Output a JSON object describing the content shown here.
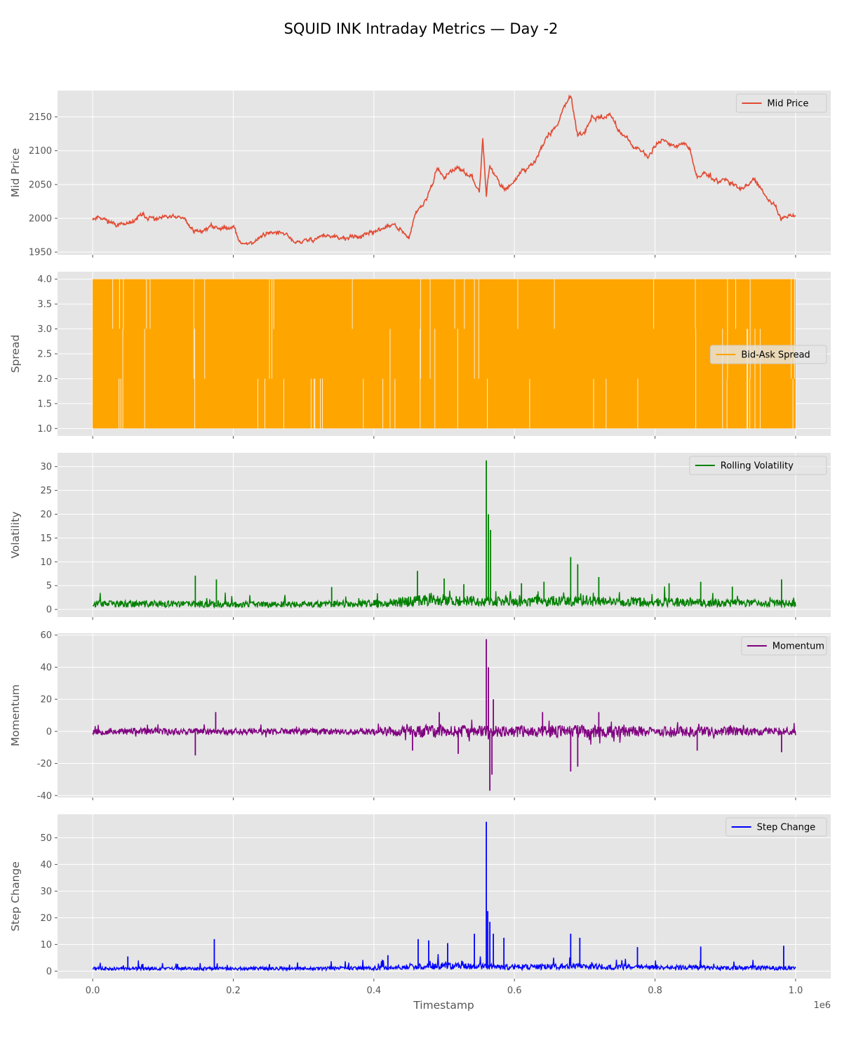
{
  "chart_data": {
    "type": "line",
    "title": "SQUID INK Intraday Metrics — Day -2",
    "xlabel": "Timestamp",
    "x_offset_text": "1e6",
    "xlim": [
      -0.05,
      1.05
    ],
    "xticks": [
      "0.0",
      "0.2",
      "0.4",
      "0.6",
      "0.8",
      "1.0"
    ],
    "xtick_values": [
      0.0,
      0.2,
      0.4,
      0.6,
      0.8,
      1.0
    ],
    "grid": true,
    "style": "ggplot",
    "panels": [
      {
        "id": "mid",
        "ylabel": "Mid Price",
        "ylim": [
          1946,
          2189
        ],
        "yticks": [
          1950,
          2000,
          2050,
          2100,
          2150
        ],
        "legend": "top-right",
        "series": [
          {
            "name": "Mid Price",
            "color": "#e24a33",
            "render": "line",
            "x": [
              0,
              0.01,
              0.02,
              0.03,
              0.05,
              0.07,
              0.09,
              0.11,
              0.13,
              0.14,
              0.15,
              0.17,
              0.19,
              0.2,
              0.21,
              0.23,
              0.25,
              0.27,
              0.29,
              0.31,
              0.33,
              0.35,
              0.37,
              0.39,
              0.41,
              0.43,
              0.44,
              0.45,
              0.46,
              0.47,
              0.48,
              0.49,
              0.5,
              0.51,
              0.52,
              0.53,
              0.54,
              0.55,
              0.555,
              0.56,
              0.565,
              0.57,
              0.575,
              0.58,
              0.59,
              0.6,
              0.61,
              0.62,
              0.63,
              0.64,
              0.65,
              0.66,
              0.67,
              0.68,
              0.69,
              0.7,
              0.71,
              0.72,
              0.73,
              0.74,
              0.75,
              0.76,
              0.77,
              0.78,
              0.79,
              0.8,
              0.81,
              0.82,
              0.83,
              0.84,
              0.85,
              0.86,
              0.87,
              0.88,
              0.89,
              0.9,
              0.91,
              0.92,
              0.93,
              0.94,
              0.95,
              0.96,
              0.97,
              0.98,
              0.99,
              1.0
            ],
            "y": [
              2000,
              2003,
              1997,
              1992,
              1990,
              2005,
              1998,
              2002,
              2000,
              1985,
              1980,
              1988,
              1985,
              1990,
              1962,
              1965,
              1980,
              1978,
              1964,
              1968,
              1975,
              1970,
              1972,
              1975,
              1985,
              1990,
              1980,
              1970,
              2010,
              2020,
              2040,
              2075,
              2060,
              2070,
              2075,
              2065,
              2060,
              2040,
              2120,
              2035,
              2080,
              2065,
              2060,
              2048,
              2045,
              2055,
              2070,
              2075,
              2085,
              2110,
              2125,
              2135,
              2165,
              2183,
              2120,
              2125,
              2150,
              2148,
              2152,
              2150,
              2128,
              2118,
              2108,
              2098,
              2090,
              2108,
              2118,
              2110,
              2105,
              2112,
              2100,
              2060,
              2068,
              2062,
              2055,
              2058,
              2052,
              2045,
              2048,
              2055,
              2045,
              2030,
              2015,
              2000,
              2005,
              2002
            ],
            "noise": 3.5,
            "seed": 11
          }
        ]
      },
      {
        "id": "spread",
        "ylabel": "Spread",
        "ylim": [
          0.85,
          4.15
        ],
        "yticks": [
          1.0,
          1.5,
          2.0,
          2.5,
          3.0,
          3.5,
          4.0
        ],
        "legend": "center-right",
        "series": [
          {
            "name": "Bid-Ask Spread",
            "color": "#ffa500",
            "render": "band",
            "x": [
              0,
              1.0
            ],
            "y_min": [
              1.0,
              1.0
            ],
            "y_max": [
              4.0,
              4.0
            ],
            "seed": 23
          }
        ]
      },
      {
        "id": "vol",
        "ylabel": "Volatility",
        "ylim": [
          -1.6,
          32.9
        ],
        "yticks": [
          0,
          5,
          10,
          15,
          20,
          25,
          30
        ],
        "legend": "top-right",
        "series": [
          {
            "name": "Rolling Volatility",
            "color": "#008000",
            "render": "spiky",
            "x": [
              0,
              0.1,
              0.2,
              0.3,
              0.4,
              0.45,
              0.5,
              0.55,
              0.6,
              0.65,
              0.7,
              0.75,
              0.8,
              0.85,
              0.9,
              0.95,
              1.0
            ],
            "y": [
              1.2,
              1.2,
              1.1,
              1.1,
              1.3,
              1.8,
              2.2,
              1.8,
              1.6,
              1.9,
              1.9,
              1.7,
              1.6,
              1.5,
              1.4,
              1.4,
              1.3
            ],
            "noise": 1.1,
            "spikes": [
              [
                0.146,
                7.1
              ],
              [
                0.176,
                6.3
              ],
              [
                0.34,
                4.7
              ],
              [
                0.462,
                8.1
              ],
              [
                0.5,
                6.5
              ],
              [
                0.528,
                5.3
              ],
              [
                0.56,
                31.3
              ],
              [
                0.563,
                20.0
              ],
              [
                0.566,
                16.7
              ],
              [
                0.61,
                5.5
              ],
              [
                0.642,
                5.8
              ],
              [
                0.68,
                11.0
              ],
              [
                0.69,
                9.5
              ],
              [
                0.72,
                6.8
              ],
              [
                0.82,
                5.5
              ],
              [
                0.865,
                5.8
              ],
              [
                0.91,
                4.8
              ],
              [
                0.98,
                6.3
              ]
            ],
            "seed": 37
          }
        ]
      },
      {
        "id": "mom",
        "ylabel": "Momentum",
        "ylim": [
          -41.2,
          61.2
        ],
        "yticks": [
          -40,
          -20,
          0,
          20,
          40,
          60
        ],
        "legend": "top-right",
        "series": [
          {
            "name": "Momentum",
            "color": "#800080",
            "render": "osc",
            "x": [
              0,
              0.1,
              0.2,
              0.3,
              0.4,
              0.45,
              0.5,
              0.55,
              0.6,
              0.65,
              0.7,
              0.75,
              0.8,
              0.85,
              0.9,
              0.95,
              1.0
            ],
            "y": [
              2.2,
              2.0,
              2.0,
              2.0,
              2.3,
              3.5,
              4.5,
              3.5,
              3.5,
              4.0,
              4.0,
              3.5,
              3.0,
              3.0,
              2.8,
              2.6,
              2.5
            ],
            "spikes": [
              [
                0.146,
                -15
              ],
              [
                0.175,
                12
              ],
              [
                0.455,
                -12
              ],
              [
                0.493,
                12
              ],
              [
                0.52,
                -14
              ],
              [
                0.56,
                57.5
              ],
              [
                0.563,
                40
              ],
              [
                0.565,
                -37
              ],
              [
                0.568,
                -27
              ],
              [
                0.57,
                20
              ],
              [
                0.64,
                12
              ],
              [
                0.68,
                -25
              ],
              [
                0.69,
                -22
              ],
              [
                0.72,
                12
              ],
              [
                0.86,
                -12
              ],
              [
                0.98,
                -13
              ]
            ],
            "seed": 53
          }
        ]
      },
      {
        "id": "step",
        "ylabel": "Step Change",
        "ylim": [
          -2.8,
          58.8
        ],
        "yticks": [
          0,
          10,
          20,
          30,
          40,
          50
        ],
        "legend": "top-right",
        "series": [
          {
            "name": "Step Change",
            "color": "#0000ff",
            "render": "spiky",
            "x": [
              0,
              0.1,
              0.2,
              0.3,
              0.4,
              0.45,
              0.5,
              0.55,
              0.6,
              0.65,
              0.7,
              0.75,
              0.8,
              0.85,
              0.9,
              0.95,
              1.0
            ],
            "y": [
              1.0,
              1.0,
              1.0,
              1.0,
              1.2,
              1.8,
              2.2,
              1.8,
              1.6,
              1.8,
              1.8,
              1.6,
              1.5,
              1.4,
              1.3,
              1.3,
              1.2
            ],
            "noise": 1.6,
            "spikes": [
              [
                0.05,
                5.5
              ],
              [
                0.173,
                12
              ],
              [
                0.42,
                6
              ],
              [
                0.463,
                12
              ],
              [
                0.478,
                11.5
              ],
              [
                0.505,
                10.5
              ],
              [
                0.543,
                14
              ],
              [
                0.56,
                56
              ],
              [
                0.562,
                22.5
              ],
              [
                0.565,
                18.5
              ],
              [
                0.57,
                14
              ],
              [
                0.585,
                12.5
              ],
              [
                0.68,
                14
              ],
              [
                0.693,
                12.5
              ],
              [
                0.775,
                9
              ],
              [
                0.865,
                9.2
              ],
              [
                0.983,
                9.5
              ]
            ],
            "seed": 71
          }
        ]
      }
    ]
  }
}
